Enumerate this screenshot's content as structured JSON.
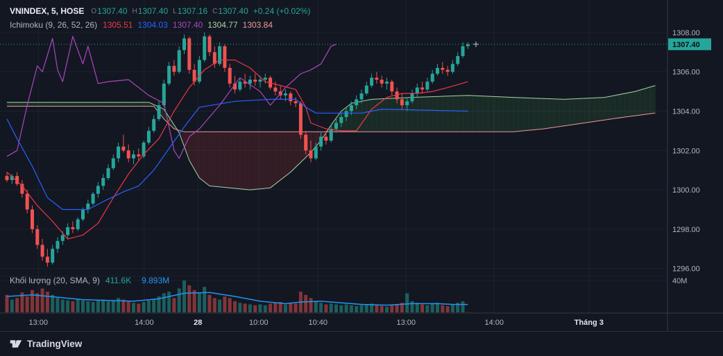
{
  "symbol_line": {
    "title": "VNINDEX, 5, HOSE",
    "o_label": "O",
    "o": "1307.40",
    "h_label": "H",
    "h": "1307.40",
    "l_label": "L",
    "l": "1307.16",
    "c_label": "C",
    "c": "1307.40",
    "change": "+0.24 (+0.02%)"
  },
  "indicator_line": {
    "title": "Ichimoku (9, 26, 52, 26)",
    "values": [
      "1305.51",
      "1304.03",
      "1307.40",
      "1304.77",
      "1303.84"
    ],
    "colors": [
      "#f23645",
      "#2962ff",
      "#ab47bc",
      "#a5d6a7",
      "#ef9a9a"
    ]
  },
  "volume_line": {
    "title": "Khối lượng (20, SMA, 9)",
    "value": "411.6K",
    "ma": "9.893M"
  },
  "price_axis": {
    "labels": [
      "1308.00",
      "1306.00",
      "1304.00",
      "1302.00",
      "1300.00",
      "1298.00",
      "1296.00"
    ],
    "last_price": "1307.40",
    "volume_scale_label": "40M"
  },
  "time_axis": {
    "ticks": [
      {
        "label": "13:00",
        "pos": 6.2
      },
      {
        "label": "14:00",
        "pos": 27.1
      },
      {
        "label": "28",
        "pos": 37.7,
        "major": true
      },
      {
        "label": "10:00",
        "pos": 49.7
      },
      {
        "label": "10:40",
        "pos": 61.4
      },
      {
        "label": "13:00",
        "pos": 78.8
      },
      {
        "label": "14:00",
        "pos": 96.2
      },
      {
        "label": "Tháng 3",
        "pos": 114.9,
        "major": true
      }
    ]
  },
  "footer": {
    "brand": "TradingView"
  },
  "colors": {
    "background": "#131722",
    "grid": "#1e222d",
    "border": "#363a45",
    "axis_text": "#b2b5be",
    "text_bright": "#e3e6eb",
    "up": "#26a69a",
    "down": "#ef5350",
    "tenkan": "#f23645",
    "kijun": "#2962ff",
    "chikou": "#ab47bc",
    "senkou_a": "#a5d6a7",
    "senkou_b": "#ef9a9a",
    "cloud_green": "rgba(76,175,80,0.13)",
    "cloud_red": "rgba(244,67,54,0.14)",
    "vol_ma": "#2196f3",
    "badge_text": "#0b0e14"
  },
  "chart_data": {
    "type": "candlestick",
    "symbol": "VNINDEX",
    "interval": "5",
    "exchange": "HOSE",
    "ohlc": {
      "open": 1307.4,
      "high": 1307.4,
      "low": 1307.16,
      "close": 1307.4,
      "change_abs": 0.24,
      "change_pct": 0.02
    },
    "indicator": {
      "name": "Ichimoku",
      "params": [
        9,
        26,
        52,
        26
      ],
      "values": {
        "tenkan": 1305.51,
        "kijun": 1304.03,
        "chikou": 1307.4,
        "senkou_a": 1304.77,
        "senkou_b": 1303.84
      }
    },
    "price_axis_range": [
      1296,
      1308
    ],
    "volume_axis_max_m": 40,
    "last_price": 1307.4,
    "candles": [
      [
        1300.7,
        1300.9,
        1300.4,
        1300.5
      ],
      [
        1300.5,
        1300.8,
        1300.3,
        1300.7
      ],
      [
        1300.7,
        1300.9,
        1300.2,
        1300.3
      ],
      [
        1300.3,
        1300.5,
        1299.6,
        1299.8
      ],
      [
        1299.8,
        1300.0,
        1298.8,
        1299.0
      ],
      [
        1299.0,
        1299.2,
        1297.8,
        1298.0
      ],
      [
        1298.0,
        1298.2,
        1297.0,
        1297.2
      ],
      [
        1297.2,
        1297.5,
        1296.4,
        1296.6
      ],
      [
        1296.6,
        1297.0,
        1296.1,
        1296.3
      ],
      [
        1296.3,
        1297.2,
        1296.2,
        1297.0
      ],
      [
        1297.0,
        1297.6,
        1296.8,
        1297.4
      ],
      [
        1297.4,
        1297.9,
        1297.2,
        1297.7
      ],
      [
        1297.7,
        1298.3,
        1297.5,
        1298.1
      ],
      [
        1298.1,
        1298.4,
        1297.8,
        1298.0
      ],
      [
        1298.0,
        1298.6,
        1297.9,
        1298.5
      ],
      [
        1298.5,
        1299.1,
        1298.4,
        1299.0
      ],
      [
        1299.0,
        1299.5,
        1298.8,
        1299.3
      ],
      [
        1299.3,
        1299.9,
        1299.2,
        1299.8
      ],
      [
        1299.8,
        1300.4,
        1299.6,
        1300.2
      ],
      [
        1300.2,
        1300.8,
        1300.0,
        1300.6
      ],
      [
        1300.6,
        1301.3,
        1300.5,
        1301.1
      ],
      [
        1301.1,
        1301.8,
        1301.0,
        1301.6
      ],
      [
        1301.6,
        1302.4,
        1301.4,
        1302.2
      ],
      [
        1302.2,
        1302.8,
        1301.9,
        1302.0
      ],
      [
        1302.0,
        1302.3,
        1301.4,
        1301.6
      ],
      [
        1301.6,
        1302.0,
        1301.3,
        1301.8
      ],
      [
        1301.8,
        1302.1,
        1301.5,
        1301.7
      ],
      [
        1301.7,
        1302.5,
        1301.6,
        1302.4
      ],
      [
        1302.4,
        1303.2,
        1302.3,
        1303.0
      ],
      [
        1303.0,
        1303.8,
        1302.9,
        1303.6
      ],
      [
        1303.6,
        1304.5,
        1303.5,
        1304.3
      ],
      [
        1304.3,
        1305.6,
        1304.2,
        1305.4
      ],
      [
        1305.4,
        1306.5,
        1305.3,
        1306.3
      ],
      [
        1306.3,
        1306.6,
        1305.8,
        1306.0
      ],
      [
        1306.0,
        1307.3,
        1305.9,
        1307.1
      ],
      [
        1307.1,
        1307.9,
        1306.9,
        1307.7
      ],
      [
        1307.7,
        1307.8,
        1305.9,
        1306.1
      ],
      [
        1306.1,
        1306.4,
        1305.3,
        1305.5
      ],
      [
        1305.5,
        1306.8,
        1305.4,
        1306.6
      ],
      [
        1306.6,
        1308.0,
        1306.5,
        1307.8
      ],
      [
        1307.8,
        1307.9,
        1306.8,
        1307.0
      ],
      [
        1307.0,
        1307.3,
        1306.2,
        1306.4
      ],
      [
        1306.4,
        1307.5,
        1306.3,
        1307.3
      ],
      [
        1307.3,
        1307.4,
        1306.0,
        1306.2
      ],
      [
        1306.2,
        1306.4,
        1305.2,
        1305.4
      ],
      [
        1305.4,
        1305.8,
        1304.9,
        1305.1
      ],
      [
        1305.1,
        1305.7,
        1305.0,
        1305.5
      ],
      [
        1305.5,
        1305.9,
        1305.2,
        1305.4
      ],
      [
        1305.4,
        1305.8,
        1305.1,
        1305.6
      ],
      [
        1305.6,
        1305.9,
        1305.3,
        1305.5
      ],
      [
        1305.5,
        1305.8,
        1305.2,
        1305.6
      ],
      [
        1305.6,
        1305.9,
        1305.4,
        1305.7
      ],
      [
        1305.7,
        1305.8,
        1305.1,
        1305.2
      ],
      [
        1305.2,
        1305.5,
        1304.8,
        1305.0
      ],
      [
        1305.0,
        1305.3,
        1304.6,
        1304.8
      ],
      [
        1304.8,
        1305.1,
        1304.5,
        1304.9
      ],
      [
        1304.9,
        1305.0,
        1304.3,
        1304.5
      ],
      [
        1304.5,
        1304.7,
        1304.2,
        1304.4
      ],
      [
        1304.4,
        1304.5,
        1302.6,
        1302.8
      ],
      [
        1302.8,
        1303.0,
        1301.8,
        1302.0
      ],
      [
        1302.0,
        1302.5,
        1301.4,
        1301.6
      ],
      [
        1301.6,
        1302.4,
        1301.5,
        1302.2
      ],
      [
        1302.2,
        1302.9,
        1302.0,
        1302.7
      ],
      [
        1302.7,
        1303.0,
        1302.3,
        1302.5
      ],
      [
        1302.5,
        1303.3,
        1302.4,
        1303.1
      ],
      [
        1303.1,
        1303.6,
        1302.9,
        1303.4
      ],
      [
        1303.4,
        1303.9,
        1303.2,
        1303.7
      ],
      [
        1303.7,
        1304.2,
        1303.5,
        1304.0
      ],
      [
        1304.0,
        1304.5,
        1303.8,
        1304.3
      ],
      [
        1304.3,
        1304.8,
        1304.1,
        1304.6
      ],
      [
        1304.6,
        1305.1,
        1304.4,
        1304.9
      ],
      [
        1304.9,
        1305.5,
        1304.8,
        1305.3
      ],
      [
        1305.3,
        1305.9,
        1305.2,
        1305.7
      ],
      [
        1305.7,
        1306.0,
        1305.4,
        1305.6
      ],
      [
        1305.6,
        1305.8,
        1305.2,
        1305.4
      ],
      [
        1305.4,
        1305.7,
        1305.1,
        1305.5
      ],
      [
        1305.5,
        1305.6,
        1304.8,
        1305.0
      ],
      [
        1305.0,
        1305.2,
        1304.4,
        1304.6
      ],
      [
        1304.6,
        1304.9,
        1304.1,
        1304.3
      ],
      [
        1304.3,
        1304.7,
        1304.0,
        1304.5
      ],
      [
        1304.5,
        1305.1,
        1304.4,
        1304.9
      ],
      [
        1304.9,
        1305.4,
        1304.7,
        1305.2
      ],
      [
        1305.2,
        1305.5,
        1304.9,
        1305.1
      ],
      [
        1305.1,
        1305.7,
        1305.0,
        1305.5
      ],
      [
        1305.5,
        1306.1,
        1305.4,
        1305.9
      ],
      [
        1305.9,
        1306.4,
        1305.8,
        1306.2
      ],
      [
        1306.2,
        1306.5,
        1305.9,
        1306.1
      ],
      [
        1306.1,
        1306.3,
        1305.8,
        1306.0
      ],
      [
        1306.0,
        1306.6,
        1305.9,
        1306.4
      ],
      [
        1306.4,
        1307.0,
        1306.3,
        1306.8
      ],
      [
        1306.8,
        1307.5,
        1306.7,
        1307.3
      ],
      [
        1307.3,
        1307.5,
        1307.16,
        1307.4
      ]
    ],
    "volumes_m": [
      22,
      16,
      18,
      25,
      20,
      28,
      24,
      30,
      26,
      22,
      18,
      16,
      15,
      14,
      16,
      15,
      14,
      13,
      15,
      16,
      14,
      15,
      18,
      16,
      14,
      12,
      11,
      13,
      15,
      17,
      20,
      24,
      26,
      18,
      30,
      40,
      34,
      28,
      24,
      32,
      22,
      18,
      16,
      20,
      18,
      14,
      12,
      11,
      10,
      9,
      10,
      9,
      11,
      12,
      13,
      10,
      12,
      11,
      26,
      22,
      18,
      14,
      12,
      10,
      11,
      10,
      9,
      10,
      9,
      8,
      9,
      10,
      11,
      9,
      8,
      7,
      9,
      10,
      12,
      24,
      14,
      12,
      10,
      9,
      11,
      12,
      9,
      8,
      10,
      12,
      14,
      0.4
    ],
    "volume_ma_m": [
      [
        0,
        20
      ],
      [
        5,
        22
      ],
      [
        10,
        19
      ],
      [
        15,
        16
      ],
      [
        20,
        15
      ],
      [
        25,
        14
      ],
      [
        30,
        17
      ],
      [
        35,
        24
      ],
      [
        40,
        25
      ],
      [
        45,
        20
      ],
      [
        50,
        14
      ],
      [
        55,
        11
      ],
      [
        58,
        13
      ],
      [
        62,
        14
      ],
      [
        66,
        12
      ],
      [
        70,
        10
      ],
      [
        75,
        9
      ],
      [
        80,
        11
      ],
      [
        85,
        11
      ],
      [
        88,
        10
      ],
      [
        91,
        9.9
      ]
    ],
    "ichimoku_lines": {
      "tenkan": [
        [
          0,
          1300.9
        ],
        [
          3,
          1300.2
        ],
        [
          6,
          1299.2
        ],
        [
          9,
          1298.4
        ],
        [
          12,
          1297.5
        ],
        [
          15,
          1297.7
        ],
        [
          18,
          1298.3
        ],
        [
          21,
          1299.6
        ],
        [
          24,
          1300.8
        ],
        [
          27,
          1301.8
        ],
        [
          30,
          1302.6
        ],
        [
          33,
          1304.0
        ],
        [
          36,
          1305.2
        ],
        [
          39,
          1306.1
        ],
        [
          42,
          1306.6
        ],
        [
          45,
          1306.6
        ],
        [
          48,
          1306.2
        ],
        [
          51,
          1305.5
        ],
        [
          54,
          1305.3
        ],
        [
          57,
          1305.1
        ],
        [
          59,
          1304.2
        ],
        [
          60,
          1303.4
        ],
        [
          63,
          1303.1
        ],
        [
          66,
          1303.0
        ],
        [
          69,
          1303.0
        ],
        [
          72,
          1304.1
        ],
        [
          75,
          1304.7
        ],
        [
          78,
          1304.9
        ],
        [
          81,
          1304.9
        ],
        [
          84,
          1305.0
        ],
        [
          87,
          1305.2
        ],
        [
          91,
          1305.5
        ]
      ],
      "kijun": [
        [
          0,
          1303.6
        ],
        [
          2,
          1302.6
        ],
        [
          5,
          1301.2
        ],
        [
          8,
          1299.6
        ],
        [
          11,
          1299.0
        ],
        [
          16,
          1299.0
        ],
        [
          19,
          1299.4
        ],
        [
          23,
          1299.9
        ],
        [
          26,
          1300.2
        ],
        [
          29,
          1301.0
        ],
        [
          32,
          1302.1
        ],
        [
          35,
          1303.2
        ],
        [
          38,
          1304.2
        ],
        [
          45,
          1304.5
        ],
        [
          52,
          1304.6
        ],
        [
          57,
          1304.6
        ],
        [
          59,
          1304.2
        ],
        [
          61,
          1303.9
        ],
        [
          70,
          1303.9
        ],
        [
          74,
          1304.1
        ],
        [
          91,
          1304.0
        ]
      ],
      "chikou": [
        [
          0,
          1301.7
        ],
        [
          2,
          1302.0
        ],
        [
          4,
          1304.3
        ],
        [
          6,
          1306.3
        ],
        [
          7,
          1306.0
        ],
        [
          9,
          1307.7
        ],
        [
          10,
          1306.1
        ],
        [
          11,
          1305.5
        ],
        [
          13,
          1307.8
        ],
        [
          15,
          1306.4
        ],
        [
          16,
          1307.3
        ],
        [
          18,
          1305.4
        ],
        [
          20,
          1305.5
        ],
        [
          24,
          1305.6
        ],
        [
          28,
          1304.8
        ],
        [
          31,
          1304.4
        ],
        [
          33,
          1302.0
        ],
        [
          34,
          1301.6
        ],
        [
          36,
          1302.7
        ],
        [
          38,
          1303.1
        ],
        [
          42,
          1304.3
        ],
        [
          46,
          1305.7
        ],
        [
          50,
          1305.0
        ],
        [
          52,
          1304.3
        ],
        [
          55,
          1305.2
        ],
        [
          58,
          1305.9
        ],
        [
          60,
          1306.1
        ],
        [
          62,
          1306.4
        ],
        [
          64,
          1307.3
        ],
        [
          65,
          1307.4
        ]
      ],
      "senkou_a": [
        [
          0,
          1304.45
        ],
        [
          28,
          1304.45
        ],
        [
          31,
          1304.1
        ],
        [
          34,
          1302.9
        ],
        [
          36,
          1301.5
        ],
        [
          38,
          1300.6
        ],
        [
          40,
          1300.2
        ],
        [
          48,
          1300.0
        ],
        [
          52,
          1300.1
        ],
        [
          56,
          1300.9
        ],
        [
          60,
          1301.9
        ],
        [
          62,
          1302.5
        ],
        [
          64,
          1303.3
        ],
        [
          66,
          1304.0
        ],
        [
          68,
          1304.4
        ],
        [
          72,
          1304.6
        ],
        [
          80,
          1304.7
        ],
        [
          91,
          1304.8
        ],
        [
          100,
          1304.7
        ],
        [
          110,
          1304.6
        ],
        [
          118,
          1304.7
        ],
        [
          124,
          1305.0
        ],
        [
          128,
          1305.3
        ]
      ],
      "senkou_b": [
        [
          0,
          1304.25
        ],
        [
          29,
          1304.25
        ],
        [
          31,
          1303.6
        ],
        [
          33,
          1303.1
        ],
        [
          35,
          1302.95
        ],
        [
          100,
          1302.95
        ],
        [
          106,
          1303.1
        ],
        [
          114,
          1303.4
        ],
        [
          122,
          1303.7
        ],
        [
          128,
          1303.9
        ]
      ]
    }
  }
}
